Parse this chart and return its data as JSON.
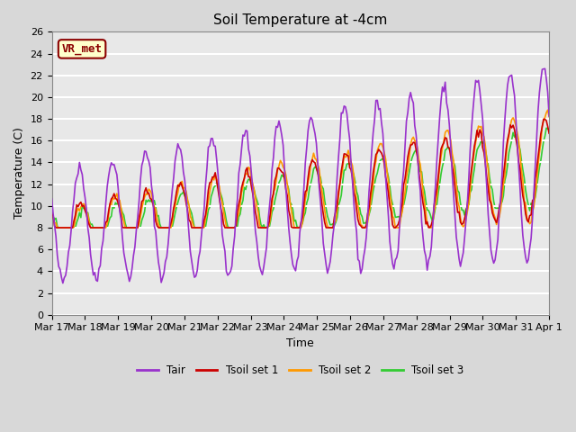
{
  "title": "Soil Temperature at -4cm",
  "xlabel": "Time",
  "ylabel": "Temperature (C)",
  "ylim": [
    0,
    26
  ],
  "annotation": "VR_met",
  "fig_facecolor": "#d8d8d8",
  "ax_facecolor": "#e8e8e8",
  "grid_color": "#ffffff",
  "line_colors": {
    "Tair": "#9932CC",
    "Tsoil1": "#cc0000",
    "Tsoil2": "#ff9900",
    "Tsoil3": "#33cc33"
  },
  "legend_labels": [
    "Tair",
    "Tsoil set 1",
    "Tsoil set 2",
    "Tsoil set 3"
  ],
  "tick_labels": [
    "Mar 17",
    "Mar 18",
    "Mar 19",
    "Mar 20",
    "Mar 21",
    "Mar 22",
    "Mar 23",
    "Mar 24",
    "Mar 25",
    "Mar 26",
    "Mar 27",
    "Mar 28",
    "Mar 29",
    "Mar 30",
    "Mar 31",
    "Apr 1"
  ],
  "n_days": 15,
  "pts_per_day": 24
}
